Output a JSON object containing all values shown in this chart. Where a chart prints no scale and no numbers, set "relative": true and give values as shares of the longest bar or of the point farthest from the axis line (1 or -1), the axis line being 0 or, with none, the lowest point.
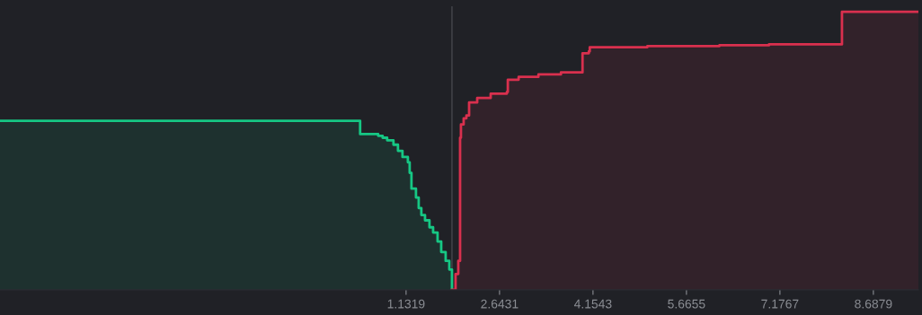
{
  "chart_data": {
    "type": "step",
    "relative": true,
    "tick_labels": "x",
    "grid": false,
    "legend": false,
    "xlim": [
      -5.434,
      9.416
    ],
    "xticks": [
      1.1319,
      2.6431,
      4.1543,
      5.6655,
      7.1767,
      8.6879
    ],
    "ref_lines": [
      {
        "axis": "x",
        "value": 1.874,
        "color": "#45474d"
      }
    ],
    "series": [
      {
        "color": "#16c784",
        "x": [
          -5.434,
          0.389,
          0.681,
          0.753,
          0.826,
          0.928,
          1.001,
          1.074,
          1.161,
          1.19,
          1.219,
          1.292,
          1.336,
          1.379,
          1.438,
          1.51,
          1.569,
          1.641,
          1.7,
          1.772,
          1.831,
          1.874
        ],
        "values": [
          0.608,
          0.56,
          0.554,
          0.547,
          0.538,
          0.522,
          0.5,
          0.478,
          0.459,
          0.421,
          0.364,
          0.332,
          0.294,
          0.269,
          0.25,
          0.225,
          0.206,
          0.174,
          0.136,
          0.104,
          0.073,
          0
        ]
      },
      {
        "color": "#d9304e",
        "x": [
          1.874,
          1.932,
          1.976,
          2.005,
          2.019,
          2.063,
          2.107,
          2.151,
          2.282,
          2.5,
          2.762,
          2.777,
          2.952,
          3.272,
          3.636,
          3.985,
          4.087,
          4.102,
          5.034,
          6.199,
          7.0,
          8.18,
          9.416
        ],
        "values": [
          0,
          0.057,
          0.104,
          0.547,
          0.595,
          0.617,
          0.627,
          0.674,
          0.69,
          0.706,
          0.712,
          0.756,
          0.766,
          0.775,
          0.782,
          0.851,
          0.858,
          0.873,
          0.877,
          0.88,
          0.883,
          1.0,
          1.0
        ]
      }
    ]
  }
}
